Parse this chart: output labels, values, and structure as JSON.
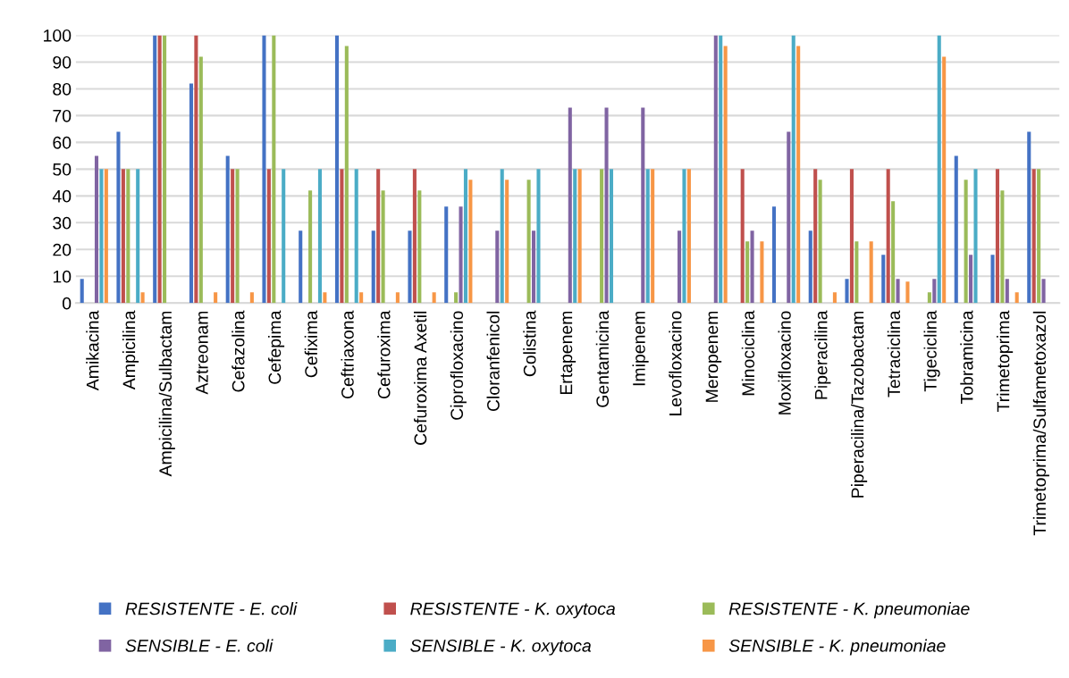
{
  "chart_data": {
    "type": "bar",
    "categories": [
      "Amikacina",
      "Ampicilina",
      "Ampicilina/Sulbactam",
      "Aztreonam",
      "Cefazolina",
      "Cefepima",
      "Cefixima",
      "Ceftriaxona",
      "Cefuroxima",
      "Cefuroxima Axetil",
      "Ciprofloxacino",
      "Cloranfenicol",
      "Colistina",
      "Ertapenem",
      "Gentamicina",
      "Imipenem",
      "Levofloxacino",
      "Meropenem",
      "Minociclina",
      "Moxifloxacino",
      "Piperacilina",
      "Piperacilina/Tazobactam",
      "Tetraciclina",
      "Tigeciclina",
      "Tobramicina",
      "Trimetoprima",
      "Trimetoprima/Sulfametoxazol"
    ],
    "series": [
      {
        "name": "RESISTENTE - E. coli",
        "color": "#4472c4",
        "values": [
          9,
          64,
          100,
          82,
          55,
          100,
          27,
          100,
          27,
          27,
          36,
          0,
          0,
          0,
          0,
          0,
          0,
          0,
          0,
          36,
          27,
          9,
          18,
          0,
          55,
          18,
          64
        ]
      },
      {
        "name": "RESISTENTE - K. oxytoca",
        "color": "#c0504d",
        "values": [
          0,
          50,
          100,
          100,
          50,
          50,
          0,
          50,
          50,
          50,
          0,
          0,
          0,
          0,
          0,
          0,
          0,
          0,
          50,
          0,
          50,
          50,
          50,
          0,
          0,
          50,
          50
        ]
      },
      {
        "name": "RESISTENTE - K. pneumoniae",
        "color": "#9bbb59",
        "values": [
          0,
          50,
          100,
          92,
          50,
          100,
          42,
          96,
          42,
          42,
          4,
          0,
          46,
          0,
          50,
          0,
          0,
          0,
          23,
          0,
          46,
          23,
          38,
          4,
          46,
          42,
          50
        ]
      },
      {
        "name": "SENSIBLE - E. coli",
        "color": "#8064a2",
        "values": [
          55,
          0,
          0,
          0,
          0,
          0,
          0,
          0,
          0,
          0,
          36,
          27,
          27,
          73,
          73,
          73,
          27,
          100,
          27,
          64,
          0,
          0,
          9,
          9,
          18,
          9,
          9
        ]
      },
      {
        "name": "SENSIBLE - K. oxytoca",
        "color": "#4bacc6",
        "values": [
          50,
          50,
          0,
          0,
          0,
          50,
          50,
          50,
          0,
          0,
          50,
          50,
          50,
          50,
          50,
          50,
          50,
          100,
          0,
          100,
          0,
          0,
          0,
          100,
          50,
          0,
          0
        ]
      },
      {
        "name": "SENSIBLE - K. pneumoniae",
        "color": "#f79646",
        "values": [
          50,
          4,
          0,
          4,
          4,
          0,
          4,
          4,
          4,
          4,
          46,
          46,
          0,
          50,
          0,
          50,
          50,
          96,
          23,
          96,
          4,
          23,
          8,
          92,
          0,
          4,
          0
        ]
      }
    ],
    "ylim": [
      0,
      100
    ],
    "yticks": [
      0,
      10,
      20,
      30,
      40,
      50,
      60,
      70,
      80,
      90,
      100
    ],
    "grid": "y",
    "legend": "bottom"
  }
}
